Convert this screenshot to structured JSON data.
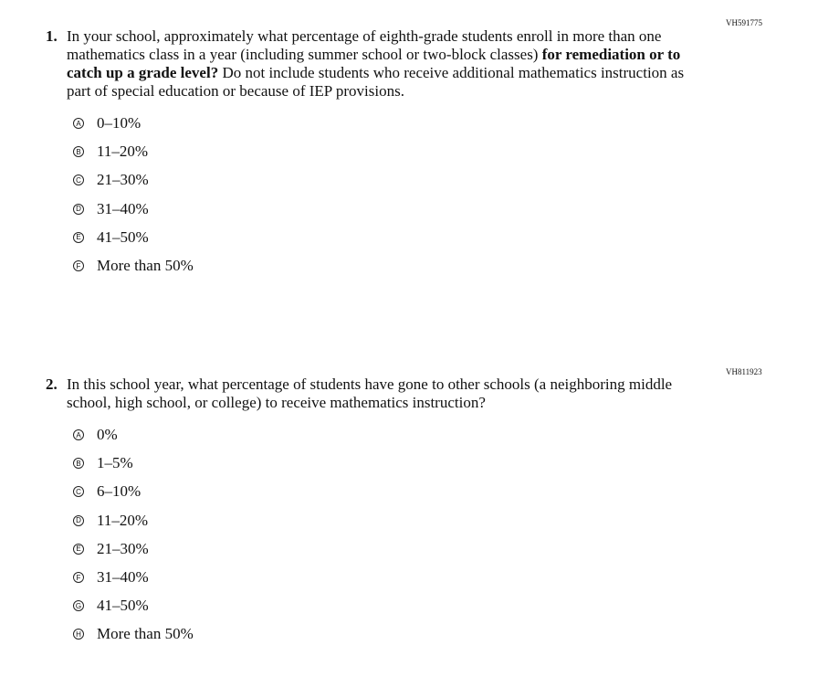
{
  "questions": [
    {
      "id": "VH591775",
      "number": "1.",
      "text_parts": [
        "In your school, approximately what percentage of eighth-grade students enroll in more than one mathematics class in a year (including summer school or two-block classes) ",
        "for remediation or to catch up a grade level?",
        " Do not include students who receive additional mathematics instruction as part of special education or because of IEP provisions."
      ],
      "options": [
        {
          "letter": "A",
          "text": "0–10%"
        },
        {
          "letter": "B",
          "text": "11–20%"
        },
        {
          "letter": "C",
          "text": "21–30%"
        },
        {
          "letter": "D",
          "text": "31–40%"
        },
        {
          "letter": "E",
          "text": "41–50%"
        },
        {
          "letter": "F",
          "text": "More than 50%"
        }
      ]
    },
    {
      "id": "VH811923",
      "number": "2.",
      "text_parts": [
        "In this school year, what percentage of students have gone to other schools (a neighboring middle school, high school, or college) to receive mathematics instruction?"
      ],
      "options": [
        {
          "letter": "A",
          "text": "0%"
        },
        {
          "letter": "B",
          "text": "1–5%"
        },
        {
          "letter": "C",
          "text": "6–10%"
        },
        {
          "letter": "D",
          "text": "11–20%"
        },
        {
          "letter": "E",
          "text": "21–30%"
        },
        {
          "letter": "F",
          "text": "31–40%"
        },
        {
          "letter": "G",
          "text": "41–50%"
        },
        {
          "letter": "H",
          "text": "More than 50%"
        }
      ]
    }
  ]
}
